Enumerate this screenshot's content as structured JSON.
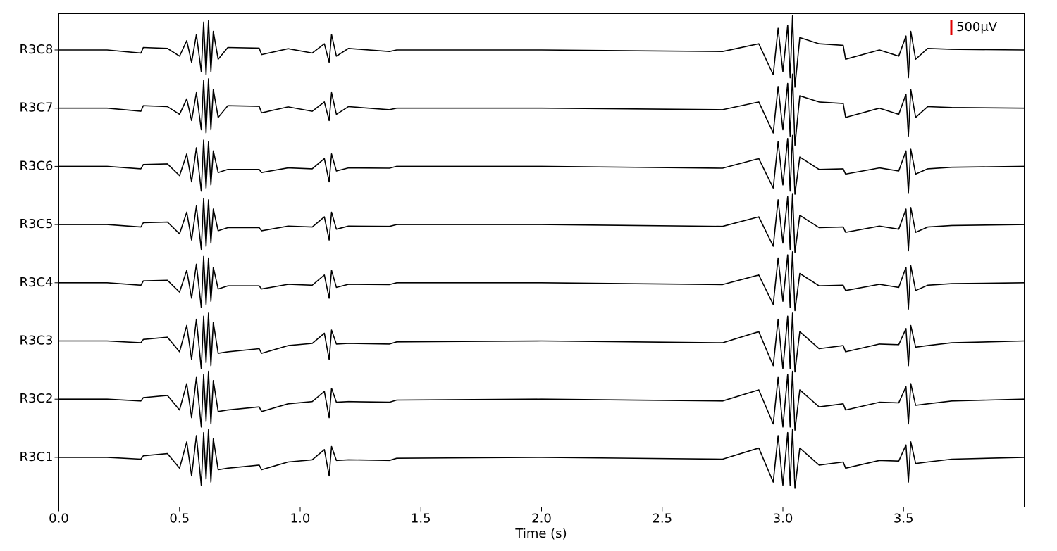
{
  "chart_data": {
    "type": "line",
    "xlabel": "Time (s)",
    "xlim": [
      0,
      4.0
    ],
    "xticks": [
      {
        "value": 0,
        "label": "0.0"
      },
      0.5,
      {
        "value": 1,
        "label": "1.0"
      },
      1.5,
      {
        "value": 2,
        "label": "2.0"
      },
      2.5,
      {
        "value": 3,
        "label": "3.0"
      },
      3.5
    ],
    "scale_bar": {
      "value": 500,
      "label": "500μV",
      "color": "#e00000"
    },
    "x": [
      0,
      0.2,
      0.34,
      0.35,
      0.45,
      0.5,
      0.53,
      0.55,
      0.57,
      0.59,
      0.6,
      0.61,
      0.62,
      0.63,
      0.64,
      0.66,
      0.7,
      0.83,
      0.84,
      0.95,
      1.05,
      1.1,
      1.12,
      1.13,
      1.15,
      1.2,
      1.37,
      1.4,
      2.0,
      2.75,
      2.9,
      2.96,
      2.98,
      3.0,
      3.02,
      3.03,
      3.04,
      3.05,
      3.07,
      3.15,
      3.25,
      3.26,
      3.4,
      3.48,
      3.51,
      3.52,
      3.53,
      3.55,
      3.6,
      3.7,
      4.0
    ],
    "series": [
      {
        "name": "R3C8",
        "color": "#000000",
        "values": [
          0,
          0,
          -100,
          80,
          50,
          -200,
          300,
          -400,
          500,
          -700,
          900,
          -800,
          950,
          -700,
          600,
          -300,
          80,
          60,
          -150,
          40,
          -100,
          200,
          -400,
          500,
          -200,
          50,
          -50,
          0,
          0,
          -50,
          200,
          -800,
          700,
          -700,
          800,
          -900,
          1100,
          -1200,
          400,
          200,
          150,
          -300,
          0,
          -200,
          450,
          -900,
          600,
          -300,
          50,
          20,
          0
        ]
      },
      {
        "name": "R3C7",
        "color": "#000000",
        "values": [
          0,
          0,
          -100,
          80,
          50,
          -200,
          300,
          -400,
          500,
          -700,
          900,
          -800,
          950,
          -700,
          600,
          -300,
          80,
          60,
          -150,
          40,
          -100,
          200,
          -400,
          500,
          -200,
          50,
          -50,
          0,
          0,
          -50,
          200,
          -800,
          700,
          -700,
          800,
          -900,
          1100,
          -1200,
          400,
          200,
          150,
          -300,
          0,
          -200,
          450,
          -900,
          600,
          -300,
          50,
          20,
          0
        ]
      },
      {
        "name": "R3C6",
        "color": "#000000",
        "values": [
          0,
          0,
          -80,
          60,
          80,
          -300,
          400,
          -500,
          600,
          -800,
          850,
          -700,
          800,
          -600,
          500,
          -200,
          -100,
          -100,
          -200,
          -50,
          -80,
          250,
          -500,
          400,
          -150,
          -50,
          -60,
          0,
          0,
          -60,
          250,
          -700,
          800,
          -600,
          900,
          -800,
          1000,
          -900,
          300,
          -100,
          -80,
          -250,
          -50,
          -150,
          500,
          -850,
          550,
          -250,
          -80,
          -30,
          0
        ]
      },
      {
        "name": "R3C5",
        "color": "#000000",
        "values": [
          0,
          0,
          -80,
          60,
          80,
          -300,
          400,
          -500,
          600,
          -800,
          850,
          -700,
          800,
          -600,
          500,
          -200,
          -100,
          -100,
          -200,
          -50,
          -80,
          250,
          -500,
          400,
          -150,
          -50,
          -60,
          0,
          0,
          -60,
          250,
          -700,
          800,
          -600,
          900,
          -800,
          1000,
          -900,
          300,
          -100,
          -80,
          -250,
          -50,
          -150,
          500,
          -850,
          550,
          -250,
          -80,
          -30,
          0
        ]
      },
      {
        "name": "R3C4",
        "color": "#000000",
        "values": [
          0,
          0,
          -80,
          60,
          80,
          -300,
          400,
          -500,
          600,
          -800,
          850,
          -700,
          800,
          -600,
          500,
          -200,
          -100,
          -100,
          -200,
          -50,
          -80,
          250,
          -500,
          400,
          -150,
          -50,
          -60,
          0,
          0,
          -60,
          250,
          -700,
          800,
          -600,
          900,
          -800,
          1000,
          -900,
          300,
          -100,
          -80,
          -250,
          -50,
          -150,
          500,
          -850,
          550,
          -250,
          -80,
          -30,
          0
        ]
      },
      {
        "name": "R3C3",
        "color": "#000000",
        "values": [
          0,
          0,
          -60,
          50,
          120,
          -350,
          500,
          -600,
          700,
          -900,
          800,
          -700,
          900,
          -800,
          600,
          -400,
          -350,
          -250,
          -400,
          -150,
          -80,
          250,
          -600,
          350,
          -100,
          -80,
          -100,
          -30,
          0,
          -60,
          300,
          -800,
          700,
          -900,
          800,
          -900,
          900,
          -1000,
          300,
          -250,
          -150,
          -350,
          -100,
          -120,
          400,
          -800,
          500,
          -200,
          -150,
          -60,
          0
        ]
      },
      {
        "name": "R3C2",
        "color": "#000000",
        "values": [
          0,
          0,
          -60,
          50,
          120,
          -350,
          500,
          -600,
          700,
          -900,
          800,
          -700,
          900,
          -800,
          600,
          -400,
          -350,
          -250,
          -400,
          -150,
          -80,
          250,
          -600,
          350,
          -100,
          -80,
          -100,
          -30,
          0,
          -60,
          300,
          -800,
          700,
          -900,
          800,
          -900,
          900,
          -1000,
          300,
          -250,
          -150,
          -350,
          -100,
          -120,
          400,
          -800,
          500,
          -200,
          -150,
          -60,
          0
        ]
      },
      {
        "name": "R3C1",
        "color": "#000000",
        "values": [
          0,
          0,
          -60,
          50,
          120,
          -350,
          500,
          -600,
          700,
          -900,
          800,
          -700,
          900,
          -800,
          600,
          -400,
          -350,
          -250,
          -400,
          -150,
          -80,
          250,
          -600,
          350,
          -100,
          -80,
          -100,
          -30,
          0,
          -60,
          300,
          -800,
          700,
          -900,
          800,
          -900,
          900,
          -1000,
          300,
          -250,
          -150,
          -350,
          -100,
          -120,
          400,
          -800,
          500,
          -200,
          -150,
          -60,
          0
        ]
      }
    ]
  }
}
